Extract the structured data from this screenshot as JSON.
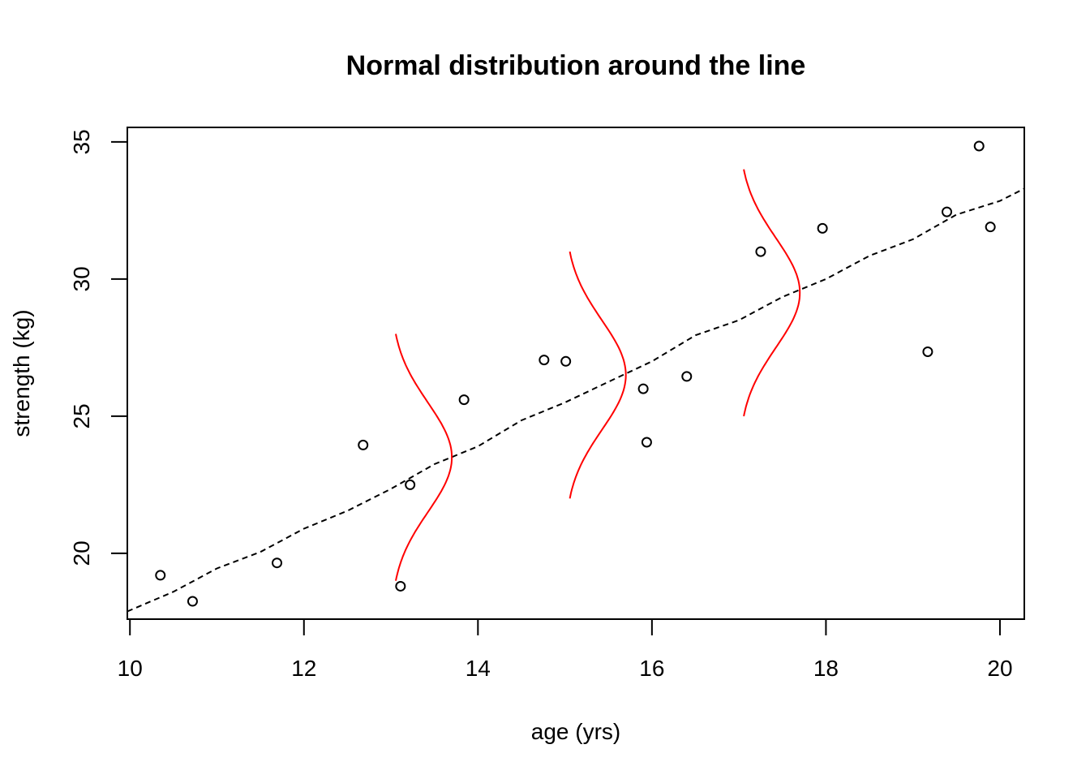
{
  "chart_data": {
    "type": "scatter",
    "title": "Normal distribution around the line",
    "xlabel": "age (yrs)",
    "ylabel": "strength (kg)",
    "xlim": [
      9.97,
      20.28
    ],
    "ylim": [
      17.6,
      35.53
    ],
    "x_ticks": [
      10,
      12,
      14,
      16,
      18,
      20
    ],
    "y_ticks": [
      20,
      25,
      30,
      35
    ],
    "grid": false,
    "legend": "none",
    "points": [
      {
        "x": 10.35,
        "y": 19.2
      },
      {
        "x": 10.72,
        "y": 18.25
      },
      {
        "x": 11.69,
        "y": 19.65
      },
      {
        "x": 12.68,
        "y": 23.95
      },
      {
        "x": 13.11,
        "y": 18.8
      },
      {
        "x": 13.22,
        "y": 22.5
      },
      {
        "x": 13.84,
        "y": 25.6
      },
      {
        "x": 14.76,
        "y": 27.05
      },
      {
        "x": 15.01,
        "y": 27.0
      },
      {
        "x": 15.9,
        "y": 26.0
      },
      {
        "x": 15.94,
        "y": 24.05
      },
      {
        "x": 16.4,
        "y": 26.45
      },
      {
        "x": 17.25,
        "y": 31.0
      },
      {
        "x": 17.96,
        "y": 31.85
      },
      {
        "x": 19.17,
        "y": 27.35
      },
      {
        "x": 19.39,
        "y": 32.45
      },
      {
        "x": 19.76,
        "y": 34.85
      },
      {
        "x": 19.89,
        "y": 31.9
      }
    ],
    "trend_line": {
      "style": "dashed",
      "color": "#000000",
      "x": [
        9.97,
        10.5,
        11.0,
        11.5,
        12.0,
        12.5,
        13.0,
        13.5,
        14.0,
        14.5,
        15.0,
        15.5,
        16.0,
        16.5,
        17.0,
        17.5,
        18.0,
        18.5,
        19.0,
        19.5,
        20.0,
        20.28
      ],
      "y": [
        17.88,
        18.6,
        19.45,
        20.05,
        20.9,
        21.55,
        22.35,
        23.25,
        23.9,
        24.85,
        25.5,
        26.25,
        27.0,
        27.95,
        28.5,
        29.35,
        30.0,
        30.85,
        31.45,
        32.35,
        32.85,
        33.3
      ]
    },
    "density_curves": {
      "color": "#ff0000",
      "description_values": "normal density curves centered on the line",
      "curves": [
        {
          "x0": 13.0,
          "mean_y": 23.5,
          "sd": 2.0,
          "y_range": [
            19.0,
            28.0
          ],
          "peak_dx": 0.7
        },
        {
          "x0": 15.0,
          "mean_y": 26.5,
          "sd": 2.0,
          "y_range": [
            22.0,
            31.0
          ],
          "peak_dx": 0.7
        },
        {
          "x0": 17.0,
          "mean_y": 29.5,
          "sd": 2.0,
          "y_range": [
            25.0,
            34.0
          ],
          "peak_dx": 0.7
        }
      ]
    }
  }
}
